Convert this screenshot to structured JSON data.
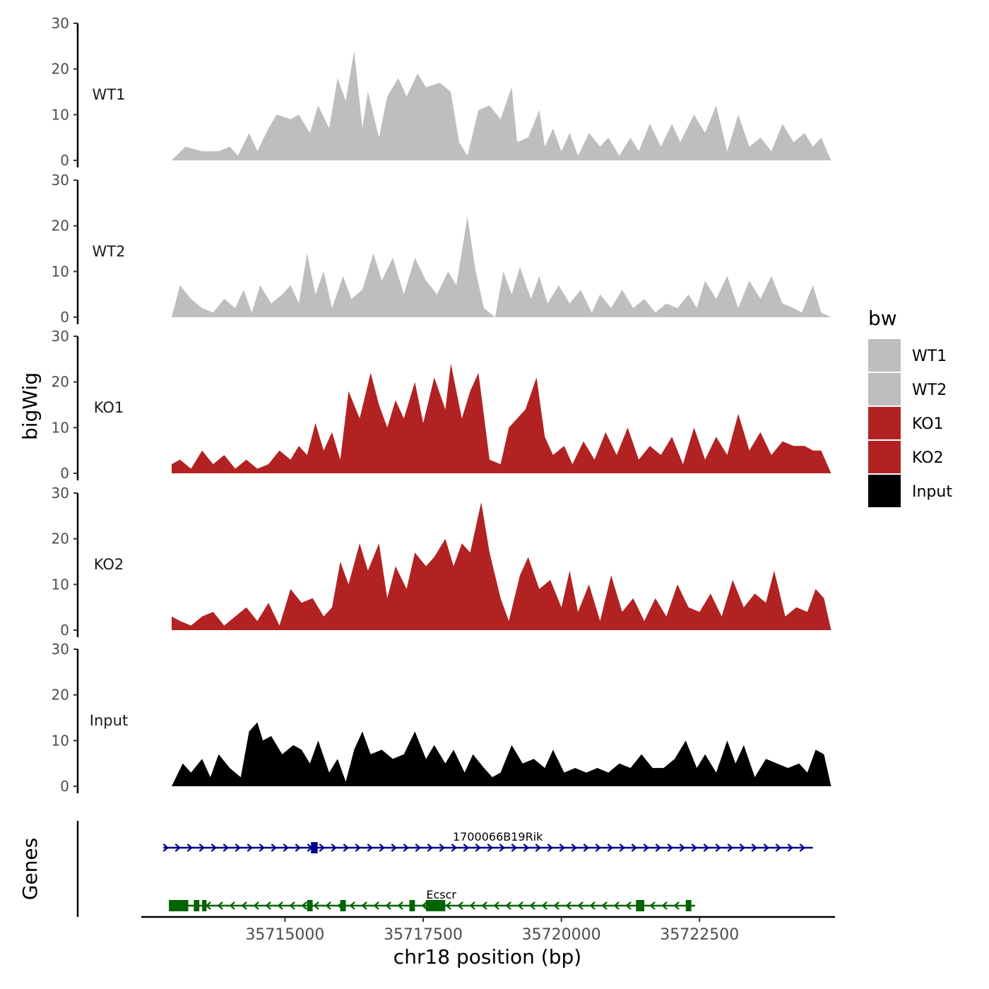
{
  "chart_data": {
    "type": "area",
    "y_axis_title": "bigWig",
    "x_axis_title": "chr18 position (bp)",
    "xlim": [
      35712400,
      35724950
    ],
    "ylim": [
      0,
      30
    ],
    "y_ticks": [
      0,
      10,
      20,
      30
    ],
    "x_ticks": [
      35715000,
      35717500,
      35720000,
      35722500
    ],
    "legend": {
      "title": "bw",
      "items": [
        {
          "label": "WT1",
          "color": "#bebebe"
        },
        {
          "label": "WT2",
          "color": "#bebebe"
        },
        {
          "label": "KO1",
          "color": "#b22222"
        },
        {
          "label": "KO2",
          "color": "#b22222"
        },
        {
          "label": "Input",
          "color": "#000000"
        }
      ]
    },
    "tracks": [
      {
        "name": "WT1",
        "color": "#bebebe",
        "x": [
          35712950,
          35713200,
          35713500,
          35713800,
          35714000,
          35714150,
          35714350,
          35714500,
          35714700,
          35714850,
          35715100,
          35715250,
          35715450,
          35715600,
          35715800,
          35715950,
          35716100,
          35716250,
          35716400,
          35716500,
          35716700,
          35716850,
          35717050,
          35717200,
          35717400,
          35717550,
          35717800,
          35718000,
          35718150,
          35718300,
          35718500,
          35718700,
          35718900,
          35719100,
          35719200,
          35719400,
          35719600,
          35719700,
          35719850,
          35720000,
          35720150,
          35720300,
          35720500,
          35720700,
          35720850,
          35721050,
          35721250,
          35721400,
          35721600,
          35721800,
          35722000,
          35722150,
          35722400,
          35722600,
          35722800,
          35723000,
          35723200,
          35723400,
          35723600,
          35723800,
          35724000,
          35724200,
          35724400,
          35724550,
          35724700,
          35724880
        ],
        "y": [
          0,
          3,
          2,
          2,
          3,
          1,
          6,
          2,
          7,
          10,
          9,
          10,
          6,
          12,
          7,
          18,
          13,
          24,
          7,
          15,
          5,
          14,
          18,
          14,
          19,
          16,
          17,
          15,
          4,
          1,
          11,
          12,
          9,
          16,
          4,
          5,
          11,
          3,
          7,
          2,
          6,
          1,
          6,
          3,
          5,
          1,
          5,
          2,
          8,
          3,
          8,
          4,
          10,
          6,
          12,
          2,
          10,
          3,
          5,
          2,
          8,
          4,
          6,
          3,
          5,
          0
        ]
      },
      {
        "name": "WT2",
        "color": "#bebebe",
        "x": [
          35712950,
          35713100,
          35713300,
          35713500,
          35713700,
          35713900,
          35714100,
          35714250,
          35714400,
          35714550,
          35714750,
          35714950,
          35715100,
          35715250,
          35715400,
          35715550,
          35715700,
          35715850,
          35716050,
          35716200,
          35716400,
          35716600,
          35716750,
          35716950,
          35717150,
          35717350,
          35717550,
          35717750,
          35717950,
          35718100,
          35718300,
          35718450,
          35718600,
          35718800,
          35718950,
          35719100,
          35719250,
          35719450,
          35719600,
          35719750,
          35719950,
          35720150,
          35720350,
          35720550,
          35720700,
          35720900,
          35721100,
          35721300,
          35721500,
          35721700,
          35721900,
          35722100,
          35722300,
          35722450,
          35722600,
          35722800,
          35723000,
          35723200,
          35723400,
          35723600,
          35723800,
          35724000,
          35724200,
          35724350,
          35724550,
          35724700,
          35724880
        ],
        "y": [
          0,
          7,
          4,
          2,
          1,
          4,
          2,
          6,
          1,
          7,
          3,
          5,
          7,
          3,
          14,
          5,
          10,
          2,
          9,
          4,
          6,
          14,
          8,
          13,
          5,
          13,
          8,
          5,
          10,
          7,
          22,
          10,
          2,
          0,
          10,
          5,
          11,
          4,
          9,
          3,
          7,
          3,
          6,
          1,
          5,
          2,
          6,
          2,
          4,
          1,
          3,
          2,
          5,
          2,
          8,
          4,
          9,
          2,
          8,
          4,
          9,
          3,
          2,
          1,
          7,
          1,
          0
        ]
      },
      {
        "name": "KO1",
        "color": "#b22222",
        "x": [
          35712950,
          35713100,
          35713300,
          35713500,
          35713700,
          35713900,
          35714100,
          35714300,
          35714500,
          35714700,
          35714900,
          35715100,
          35715250,
          35715400,
          35715550,
          35715700,
          35715850,
          35716000,
          35716150,
          35716350,
          35716550,
          35716700,
          35716850,
          35717000,
          35717150,
          35717350,
          35717500,
          35717700,
          35717900,
          35718000,
          35718200,
          35718350,
          35718500,
          35718700,
          35718900,
          35719050,
          35719200,
          35719350,
          35719550,
          35719700,
          35719850,
          35720050,
          35720200,
          35720400,
          35720600,
          35720800,
          35721000,
          35721200,
          35721400,
          35721600,
          35721800,
          35722000,
          35722200,
          35722400,
          35722600,
          35722800,
          35723000,
          35723200,
          35723400,
          35723600,
          35723800,
          35724000,
          35724200,
          35724400,
          35724550,
          35724700,
          35724880
        ],
        "y": [
          2,
          3,
          1,
          5,
          2,
          4,
          1,
          3,
          1,
          2,
          5,
          3,
          6,
          4,
          11,
          5,
          9,
          3,
          18,
          12,
          22,
          15,
          10,
          16,
          12,
          20,
          11,
          21,
          14,
          24,
          12,
          18,
          22,
          3,
          2,
          10,
          12,
          14,
          21,
          8,
          4,
          6,
          2,
          7,
          3,
          9,
          4,
          10,
          3,
          6,
          4,
          8,
          2,
          10,
          3,
          8,
          4,
          13,
          5,
          9,
          4,
          7,
          6,
          6,
          5,
          5,
          0
        ]
      },
      {
        "name": "KO2",
        "color": "#b22222",
        "x": [
          35712950,
          35713100,
          35713300,
          35713500,
          35713700,
          35713900,
          35714100,
          35714300,
          35714500,
          35714700,
          35714900,
          35715100,
          35715300,
          35715500,
          35715700,
          35715850,
          35716000,
          35716150,
          35716350,
          35716500,
          35716700,
          35716850,
          35717000,
          35717200,
          35717350,
          35717550,
          35717700,
          35717900,
          35718050,
          35718200,
          35718350,
          35718550,
          35718700,
          35718900,
          35719050,
          35719250,
          35719400,
          35719600,
          35719800,
          35720000,
          35720150,
          35720300,
          35720500,
          35720700,
          35720900,
          35721100,
          35721300,
          35721500,
          35721700,
          35721900,
          35722100,
          35722300,
          35722500,
          35722700,
          35722900,
          35723100,
          35723300,
          35723500,
          35723700,
          35723850,
          35724050,
          35724250,
          35724450,
          35724600,
          35724750,
          35724880
        ],
        "y": [
          3,
          2,
          1,
          3,
          4,
          1,
          3,
          5,
          2,
          6,
          1,
          9,
          6,
          7,
          3,
          5,
          15,
          10,
          19,
          13,
          19,
          7,
          14,
          9,
          17,
          14,
          16,
          20,
          14,
          19,
          17,
          28,
          17,
          7,
          2,
          12,
          16,
          9,
          11,
          5,
          13,
          4,
          10,
          2,
          12,
          4,
          7,
          2,
          7,
          3,
          10,
          5,
          4,
          8,
          3,
          11,
          5,
          8,
          6,
          13,
          3,
          5,
          4,
          9,
          7,
          0
        ]
      },
      {
        "name": "Input",
        "color": "#000000",
        "x": [
          35712950,
          35713150,
          35713300,
          35713500,
          35713650,
          35713800,
          35714000,
          35714200,
          35714350,
          35714500,
          35714600,
          35714750,
          35714950,
          35715150,
          35715300,
          35715450,
          35715600,
          35715800,
          35715950,
          35716100,
          35716250,
          35716400,
          35716550,
          35716750,
          35716950,
          35717150,
          35717350,
          35717550,
          35717700,
          35717900,
          35718050,
          35718250,
          35718400,
          35718600,
          35718750,
          35718900,
          35719100,
          35719300,
          35719500,
          35719700,
          35719850,
          35720050,
          35720250,
          35720450,
          35720650,
          35720850,
          35721050,
          35721250,
          35721450,
          35721650,
          35721850,
          35722050,
          35722250,
          35722450,
          35722600,
          35722800,
          35723000,
          35723150,
          35723300,
          35723500,
          35723700,
          35723900,
          35724100,
          35724300,
          35724450,
          35724600,
          35724750,
          35724880
        ],
        "y": [
          0,
          5,
          3,
          6,
          2,
          7,
          4,
          2,
          12,
          14,
          10,
          11,
          7,
          9,
          8,
          5,
          10,
          3,
          6,
          1,
          8,
          12,
          7,
          8,
          6,
          7,
          12,
          6,
          9,
          5,
          8,
          3,
          7,
          4,
          2,
          3,
          9,
          5,
          6,
          4,
          8,
          3,
          4,
          3,
          4,
          3,
          5,
          4,
          7,
          4,
          4,
          6,
          10,
          4,
          7,
          3,
          10,
          5,
          9,
          2,
          6,
          5,
          4,
          5,
          3,
          8,
          7,
          0
        ]
      }
    ],
    "genes": [
      {
        "name": "1700066B19Rik",
        "strand": "+",
        "start": 35712800,
        "end": 35724550,
        "color": "#00008b",
        "exons": [
          [
            35715470,
            35715590
          ]
        ]
      },
      {
        "name": "Ecscr",
        "strand": "-",
        "start": 35712900,
        "end": 35722420,
        "color": "#006400",
        "exons": [
          [
            35712900,
            35713250
          ],
          [
            35713350,
            35713450
          ],
          [
            35713500,
            35713580
          ],
          [
            35715400,
            35715500
          ],
          [
            35716000,
            35716100
          ],
          [
            35717250,
            35717350
          ],
          [
            35717550,
            35717900
          ],
          [
            35721350,
            35721500
          ],
          [
            35722250,
            35722350
          ]
        ]
      }
    ],
    "genes_panel_label": "Genes"
  }
}
